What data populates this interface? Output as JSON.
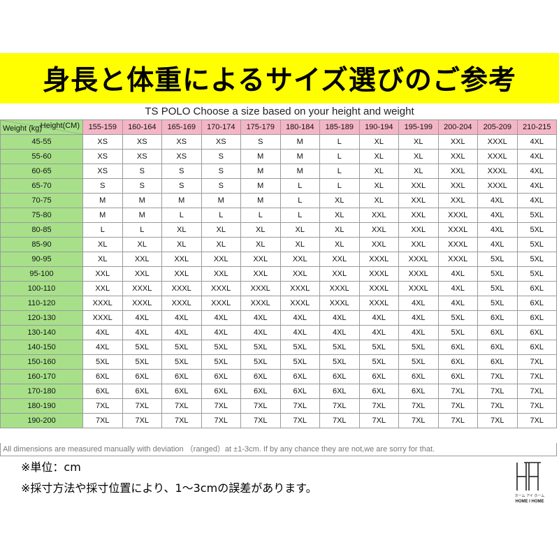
{
  "banner": {
    "title": "身長と体重によるサイズ選びのご参考"
  },
  "chart_title": "TS POLO Choose a size based on your height and weight",
  "table": {
    "corner_height_label": "Height(CM)",
    "corner_weight_label": "Weight (kg)",
    "heights": [
      "155-159",
      "160-164",
      "165-169",
      "170-174",
      "175-179",
      "180-184",
      "185-189",
      "190-194",
      "195-199",
      "200-204",
      "205-209",
      "210-215"
    ],
    "rows": [
      {
        "weight": "45-55",
        "sizes": [
          "XS",
          "XS",
          "XS",
          "XS",
          "S",
          "M",
          "L",
          "XL",
          "XL",
          "XXL",
          "XXXL",
          "4XL"
        ]
      },
      {
        "weight": "55-60",
        "sizes": [
          "XS",
          "XS",
          "XS",
          "S",
          "M",
          "M",
          "L",
          "XL",
          "XL",
          "XXL",
          "XXXL",
          "4XL"
        ]
      },
      {
        "weight": "60-65",
        "sizes": [
          "XS",
          "S",
          "S",
          "S",
          "M",
          "M",
          "L",
          "XL",
          "XL",
          "XXL",
          "XXXL",
          "4XL"
        ]
      },
      {
        "weight": "65-70",
        "sizes": [
          "S",
          "S",
          "S",
          "S",
          "M",
          "L",
          "L",
          "XL",
          "XXL",
          "XXL",
          "XXXL",
          "4XL"
        ]
      },
      {
        "weight": "70-75",
        "sizes": [
          "M",
          "M",
          "M",
          "M",
          "M",
          "L",
          "XL",
          "XL",
          "XXL",
          "XXL",
          "4XL",
          "4XL"
        ]
      },
      {
        "weight": "75-80",
        "sizes": [
          "M",
          "M",
          "L",
          "L",
          "L",
          "L",
          "XL",
          "XXL",
          "XXL",
          "XXXL",
          "4XL",
          "5XL"
        ]
      },
      {
        "weight": "80-85",
        "sizes": [
          "L",
          "L",
          "XL",
          "XL",
          "XL",
          "XL",
          "XL",
          "XXL",
          "XXL",
          "XXXL",
          "4XL",
          "5XL"
        ]
      },
      {
        "weight": "85-90",
        "sizes": [
          "XL",
          "XL",
          "XL",
          "XL",
          "XL",
          "XL",
          "XL",
          "XXL",
          "XXL",
          "XXXL",
          "4XL",
          "5XL"
        ]
      },
      {
        "weight": "90-95",
        "sizes": [
          "XL",
          "XXL",
          "XXL",
          "XXL",
          "XXL",
          "XXL",
          "XXL",
          "XXXL",
          "XXXL",
          "XXXL",
          "5XL",
          "5XL"
        ]
      },
      {
        "weight": "95-100",
        "sizes": [
          "XXL",
          "XXL",
          "XXL",
          "XXL",
          "XXL",
          "XXL",
          "XXL",
          "XXXL",
          "XXXL",
          "4XL",
          "5XL",
          "5XL"
        ]
      },
      {
        "weight": "100-110",
        "sizes": [
          "XXL",
          "XXXL",
          "XXXL",
          "XXXL",
          "XXXL",
          "XXXL",
          "XXXL",
          "XXXL",
          "XXXL",
          "4XL",
          "5XL",
          "6XL"
        ]
      },
      {
        "weight": "110-120",
        "sizes": [
          "XXXL",
          "XXXL",
          "XXXL",
          "XXXL",
          "XXXL",
          "XXXL",
          "XXXL",
          "XXXL",
          "4XL",
          "4XL",
          "5XL",
          "6XL"
        ]
      },
      {
        "weight": "120-130",
        "sizes": [
          "XXXL",
          "4XL",
          "4XL",
          "4XL",
          "4XL",
          "4XL",
          "4XL",
          "4XL",
          "4XL",
          "5XL",
          "6XL",
          "6XL"
        ]
      },
      {
        "weight": "130-140",
        "sizes": [
          "4XL",
          "4XL",
          "4XL",
          "4XL",
          "4XL",
          "4XL",
          "4XL",
          "4XL",
          "4XL",
          "5XL",
          "6XL",
          "6XL"
        ]
      },
      {
        "weight": "140-150",
        "sizes": [
          "4XL",
          "5XL",
          "5XL",
          "5XL",
          "5XL",
          "5XL",
          "5XL",
          "5XL",
          "5XL",
          "6XL",
          "6XL",
          "6XL"
        ]
      },
      {
        "weight": "150-160",
        "sizes": [
          "5XL",
          "5XL",
          "5XL",
          "5XL",
          "5XL",
          "5XL",
          "5XL",
          "5XL",
          "5XL",
          "6XL",
          "6XL",
          "7XL"
        ]
      },
      {
        "weight": "160-170",
        "sizes": [
          "6XL",
          "6XL",
          "6XL",
          "6XL",
          "6XL",
          "6XL",
          "6XL",
          "6XL",
          "6XL",
          "6XL",
          "7XL",
          "7XL"
        ]
      },
      {
        "weight": "170-180",
        "sizes": [
          "6XL",
          "6XL",
          "6XL",
          "6XL",
          "6XL",
          "6XL",
          "6XL",
          "6XL",
          "6XL",
          "7XL",
          "7XL",
          "7XL"
        ]
      },
      {
        "weight": "180-190",
        "sizes": [
          "7XL",
          "7XL",
          "7XL",
          "7XL",
          "7XL",
          "7XL",
          "7XL",
          "7XL",
          "7XL",
          "7XL",
          "7XL",
          "7XL"
        ]
      },
      {
        "weight": "190-200",
        "sizes": [
          "7XL",
          "7XL",
          "7XL",
          "7XL",
          "7XL",
          "7XL",
          "7XL",
          "7XL",
          "7XL",
          "7XL",
          "7XL",
          "7XL"
        ]
      }
    ]
  },
  "footnote": "All dimensions are measured manually with deviation （ranged）at ±1-3cm. If by any chance they are not,we are sorry for that.",
  "notes": {
    "unit": "※単位：cm",
    "method": "※採寸方法や採寸位置により、1～3cmの誤差があります。"
  },
  "logo": {
    "mark": "HH",
    "sub_jp": "ホーム アイ ホーム",
    "sub_en": "HOME I HOME"
  },
  "colors": {
    "banner_bg": "#ffff00",
    "height_header_bg": "#f4b6c6",
    "weight_header_bg": "#a8e08a"
  }
}
